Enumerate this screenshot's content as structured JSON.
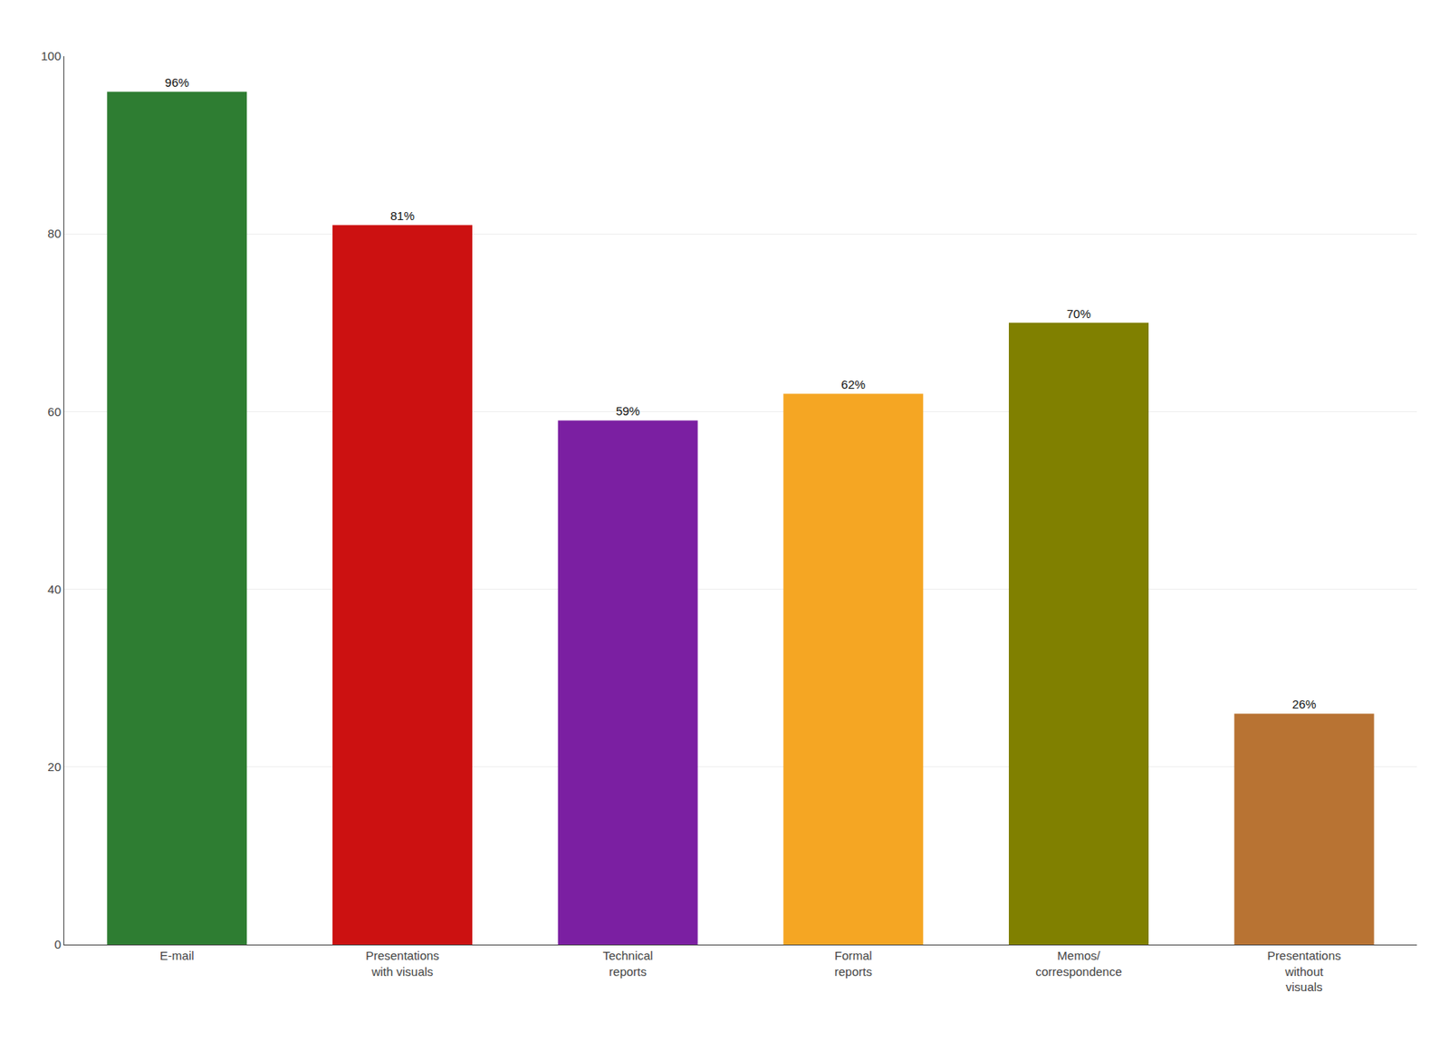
{
  "chart_data": {
    "type": "bar",
    "categories": [
      "E-mail",
      "Presentations\nwith visuals",
      "Technical\nreports",
      "Formal\nreports",
      "Memos/\ncorrespondence",
      "Presentations\nwithout\nvisuals"
    ],
    "values": [
      96,
      81,
      59,
      62,
      70,
      26
    ],
    "value_labels": [
      "96%",
      "81%",
      "59%",
      "62%",
      "70%",
      "26%"
    ],
    "colors": [
      "#2e7d32",
      "#cc1111",
      "#7b1fa2",
      "#f5a623",
      "#808000",
      "#b87333"
    ],
    "ylim": [
      0,
      100
    ],
    "yticks": [
      0,
      20,
      40,
      60,
      80,
      100
    ],
    "grid": true,
    "data_labels": true
  }
}
